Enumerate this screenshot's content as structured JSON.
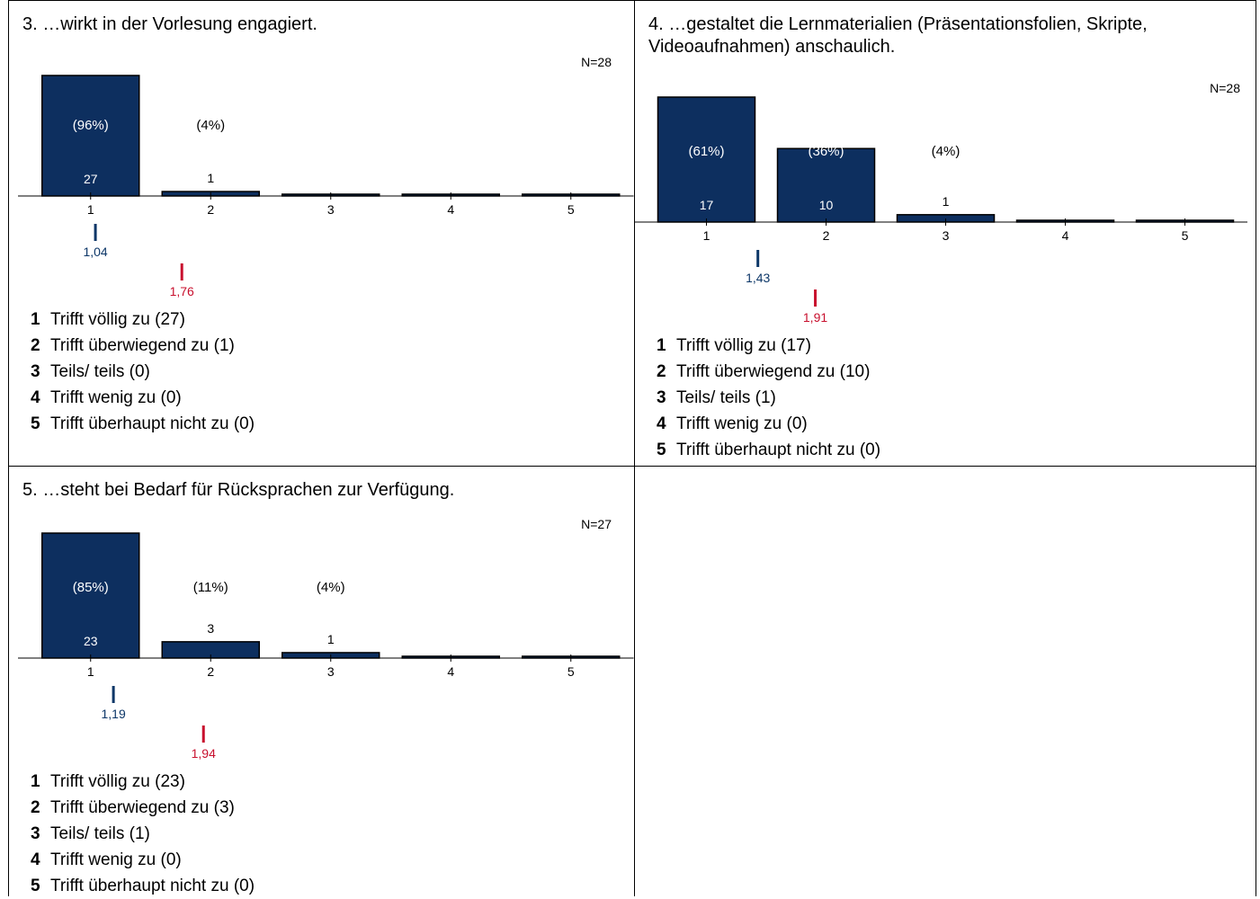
{
  "colors": {
    "bar": "#0d2f5f",
    "mean": "#0d3768",
    "reference": "#c8102e",
    "axis": "#000000"
  },
  "chart_data": [
    {
      "type": "bar",
      "title": "3. …wirkt in der Vorlesung engagiert.",
      "n_label": "N=28",
      "categories": [
        "1",
        "2",
        "3",
        "4",
        "5"
      ],
      "values": [
        27,
        1,
        0,
        0,
        0
      ],
      "value_labels": [
        "27",
        "1",
        "",
        "",
        ""
      ],
      "percent_labels": [
        "(96%)",
        "(4%)",
        "",
        "",
        ""
      ],
      "ylim": [
        0,
        28
      ],
      "mean": {
        "value": 1.04,
        "label": "1,04"
      },
      "reference_mean": {
        "value": 1.76,
        "label": "1,76"
      },
      "legend": [
        {
          "num": "1",
          "text": "Trifft völlig zu (27)"
        },
        {
          "num": "2",
          "text": "Trifft überwiegend zu (1)"
        },
        {
          "num": "3",
          "text": "Teils/ teils (0)"
        },
        {
          "num": "4",
          "text": "Trifft wenig zu (0)"
        },
        {
          "num": "5",
          "text": "Trifft überhaupt nicht zu (0)"
        }
      ]
    },
    {
      "type": "bar",
      "title": "4. …gestaltet die Lernmaterialien (Präsentationsfolien, Skripte, Videoaufnahmen) anschaulich.",
      "n_label": "N=28",
      "categories": [
        "1",
        "2",
        "3",
        "4",
        "5"
      ],
      "values": [
        17,
        10,
        1,
        0,
        0
      ],
      "value_labels": [
        "17",
        "10",
        "1",
        "",
        ""
      ],
      "percent_labels": [
        "(61%)",
        "(36%)",
        "(4%)",
        "",
        ""
      ],
      "ylim": [
        0,
        17
      ],
      "mean": {
        "value": 1.43,
        "label": "1,43"
      },
      "reference_mean": {
        "value": 1.91,
        "label": "1,91"
      },
      "legend": [
        {
          "num": "1",
          "text": "Trifft völlig zu (17)"
        },
        {
          "num": "2",
          "text": "Trifft überwiegend zu (10)"
        },
        {
          "num": "3",
          "text": "Teils/ teils (1)"
        },
        {
          "num": "4",
          "text": "Trifft wenig zu (0)"
        },
        {
          "num": "5",
          "text": "Trifft überhaupt nicht zu (0)"
        }
      ]
    },
    {
      "type": "bar",
      "title": "5. …steht bei Bedarf für Rücksprachen zur Verfügung.",
      "n_label": "N=27",
      "categories": [
        "1",
        "2",
        "3",
        "4",
        "5"
      ],
      "values": [
        23,
        3,
        1,
        0,
        0
      ],
      "value_labels": [
        "23",
        "3",
        "1",
        "",
        ""
      ],
      "percent_labels": [
        "(85%)",
        "(11%)",
        "(4%)",
        "",
        ""
      ],
      "ylim": [
        0,
        23
      ],
      "mean": {
        "value": 1.19,
        "label": "1,19"
      },
      "reference_mean": {
        "value": 1.94,
        "label": "1,94"
      },
      "legend": [
        {
          "num": "1",
          "text": "Trifft völlig zu (23)"
        },
        {
          "num": "2",
          "text": "Trifft überwiegend zu (3)"
        },
        {
          "num": "3",
          "text": "Teils/ teils (1)"
        },
        {
          "num": "4",
          "text": "Trifft wenig zu (0)"
        },
        {
          "num": "5",
          "text": "Trifft überhaupt nicht zu (0)"
        }
      ]
    }
  ]
}
